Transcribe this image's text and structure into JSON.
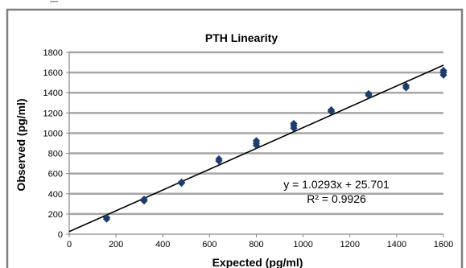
{
  "chart_data": {
    "type": "scatter",
    "title": "PTH Linearity",
    "xlabel": "Expected (pg/ml)",
    "ylabel": "Observed (pg/ml)",
    "xlim": [
      0,
      1600
    ],
    "ylim": [
      0,
      1800
    ],
    "x_ticks": [
      0,
      200,
      400,
      600,
      800,
      1000,
      1200,
      1400,
      1600
    ],
    "y_ticks": [
      0,
      200,
      400,
      600,
      800,
      1000,
      1200,
      1400,
      1600,
      1800
    ],
    "grid": "horizontal",
    "series": [
      {
        "marker_color": "#1F3C6E",
        "points": [
          [
            160,
            150
          ],
          [
            160,
            165
          ],
          [
            320,
            330
          ],
          [
            320,
            345
          ],
          [
            480,
            505
          ],
          [
            480,
            515
          ],
          [
            640,
            725
          ],
          [
            640,
            745
          ],
          [
            800,
            880
          ],
          [
            800,
            900
          ],
          [
            800,
            925
          ],
          [
            960,
            1050
          ],
          [
            960,
            1075
          ],
          [
            960,
            1095
          ],
          [
            1120,
            1215
          ],
          [
            1120,
            1230
          ],
          [
            1280,
            1375
          ],
          [
            1280,
            1390
          ],
          [
            1440,
            1450
          ],
          [
            1440,
            1470
          ],
          [
            1600,
            1575
          ],
          [
            1600,
            1600
          ],
          [
            1600,
            1620
          ]
        ]
      }
    ],
    "trendline": {
      "slope": 1.0293,
      "intercept": 25.701,
      "color": "#000000",
      "equation_label": "y = 1.0293x + 25.701",
      "r2_label": "R² = 0.9926"
    },
    "colors": {
      "gridline": "#A6A6A6",
      "frame": "#7F7F7F",
      "axis": "#868686"
    }
  }
}
